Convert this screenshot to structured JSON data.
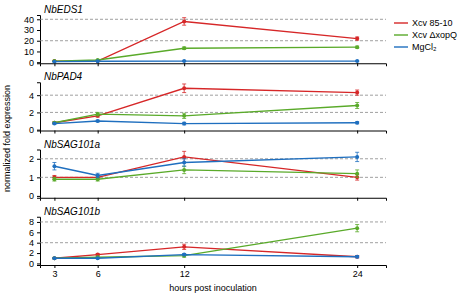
{
  "chart_data": [
    {
      "type": "line",
      "title": "NbEDS1",
      "ylabel": "normalized fold expression",
      "x": [
        3,
        6,
        12,
        24
      ],
      "series": [
        {
          "name": "Xcv 85-10",
          "color": "#d62728",
          "marker": "circle",
          "values": [
            1,
            1,
            38,
            22
          ],
          "errors": [
            0,
            0.15,
            3.5,
            1.5
          ]
        },
        {
          "name": "Xcv ΔxopQ",
          "color": "#5aaa2a",
          "marker": "circle",
          "values": [
            1,
            2,
            13,
            14
          ],
          "errors": [
            0,
            0.2,
            1.2,
            1.0
          ]
        },
        {
          "name": "MgCl₂",
          "color": "#1f6fbf",
          "marker": "circle",
          "values": [
            0.5,
            0.8,
            1,
            1
          ],
          "errors": [
            0,
            0.1,
            0.15,
            0.15
          ]
        }
      ],
      "dashed_lines": [
        20,
        40
      ],
      "xlim": [
        2,
        26
      ],
      "xticks": [
        3,
        6,
        12,
        24
      ],
      "ylim": [
        -1,
        44
      ],
      "yticks": [
        0,
        10,
        20,
        30,
        40
      ],
      "tick_labels": "y",
      "legend": "upper right"
    },
    {
      "type": "line",
      "title": "NbPAD4",
      "x": [
        3,
        6,
        12,
        24
      ],
      "series": [
        {
          "color": "#d62728",
          "marker": "circle",
          "values": [
            0.8,
            1.6,
            4.8,
            4.3
          ],
          "errors": [
            0.1,
            0.15,
            0.5,
            0.3
          ]
        },
        {
          "color": "#5aaa2a",
          "marker": "circle",
          "values": [
            0.8,
            1.8,
            1.6,
            2.8
          ],
          "errors": [
            0.1,
            0.2,
            0.3,
            0.35
          ]
        },
        {
          "color": "#1f6fbf",
          "marker": "circle",
          "values": [
            0.7,
            1.0,
            0.7,
            0.8
          ],
          "errors": [
            0.08,
            0.1,
            0.15,
            0.12
          ]
        }
      ],
      "dashed_lines": [
        2,
        4
      ],
      "xlim": [
        2,
        26
      ],
      "xticks": [
        3,
        6,
        12,
        24
      ],
      "ylim": [
        -0.1,
        5.5
      ],
      "yticks": [
        0,
        2,
        4
      ],
      "tick_labels": "y"
    },
    {
      "type": "line",
      "title": "NbSAG101a",
      "x": [
        3,
        6,
        12,
        24
      ],
      "series": [
        {
          "color": "#d62728",
          "marker": "circle",
          "values": [
            1.0,
            1.0,
            2.1,
            1.0
          ],
          "errors": [
            0.1,
            0.1,
            0.3,
            0.15
          ]
        },
        {
          "color": "#5aaa2a",
          "marker": "circle",
          "values": [
            0.9,
            0.9,
            1.4,
            1.2
          ],
          "errors": [
            0.1,
            0.1,
            0.2,
            0.2
          ]
        },
        {
          "color": "#1f6fbf",
          "marker": "circle",
          "values": [
            1.6,
            1.1,
            1.8,
            2.1
          ],
          "errors": [
            0.2,
            0.12,
            0.2,
            0.25
          ]
        }
      ],
      "dashed_lines": [
        1,
        2
      ],
      "xlim": [
        2,
        26
      ],
      "xticks": [
        3,
        6,
        12,
        24
      ],
      "ylim": [
        -0.1,
        2.5
      ],
      "yticks": [
        0,
        1,
        2
      ],
      "tick_labels": "y"
    },
    {
      "type": "line",
      "title": "NbSAG101b",
      "xlabel": "hours post inoculation",
      "x": [
        3,
        6,
        12,
        24
      ],
      "series": [
        {
          "color": "#d62728",
          "marker": "circle",
          "values": [
            1.0,
            1.7,
            3.2,
            1.3
          ],
          "errors": [
            0.1,
            0.2,
            0.5,
            0.2
          ]
        },
        {
          "color": "#5aaa2a",
          "marker": "circle",
          "values": [
            1.0,
            1.2,
            1.5,
            6.8
          ],
          "errors": [
            0.1,
            0.2,
            0.3,
            0.7
          ]
        },
        {
          "color": "#1f6fbf",
          "marker": "circle",
          "values": [
            1.0,
            1.0,
            1.7,
            1.3
          ],
          "errors": [
            0.1,
            0.1,
            0.2,
            0.2
          ]
        }
      ],
      "dashed_lines": [
        4,
        8
      ],
      "xlim": [
        2,
        26
      ],
      "xticks": [
        3,
        6,
        12,
        24
      ],
      "ylim": [
        -0.3,
        9
      ],
      "yticks": [
        0,
        2,
        4,
        6,
        8
      ]
    }
  ]
}
